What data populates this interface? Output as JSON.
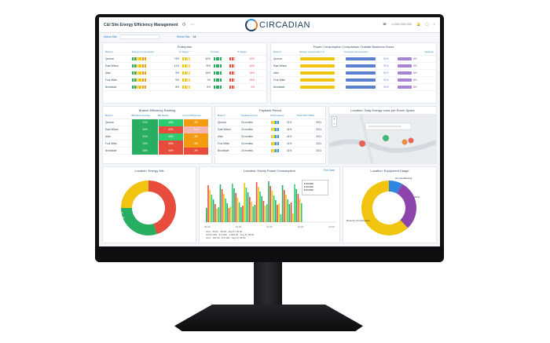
{
  "app": {
    "title": "C&I Site Energy Efficiency Management",
    "logo_text": "CIRCADIAN",
    "phone": "1-000-000-000",
    "colors": {
      "accent": "#2980b9",
      "good": "#27ae60",
      "warn": "#f1c40f",
      "bad": "#e74c3c",
      "purple": "#8e44ad"
    }
  },
  "filters": {
    "a_label": "Select Site",
    "b_label": "Select Site",
    "c_value": "All"
  },
  "panel1": {
    "title": "Enterprise",
    "headers": [
      "Branch",
      "Energy Consumption",
      "% Target ^",
      "% Peak",
      "% Target"
    ],
    "rows": [
      {
        "name": "Quezon",
        "v1": "73%",
        "v2": "62%",
        "v3": "40%"
      },
      {
        "name": "East Wilson",
        "v1": "41%",
        "v2": "79%",
        "v3": "40%"
      },
      {
        "name": "Alice",
        "v1": "9%",
        "v2": "45%",
        "v3": "45%"
      },
      {
        "name": "Four Miles",
        "v1": "9%",
        "v2": "1%",
        "v3": "25%"
      },
      {
        "name": "Brookdale",
        "v1": "8%",
        "v2": "5%",
        "v3": "5%"
      }
    ]
  },
  "panel2": {
    "title": "Power Consumption Comparison Outside Business Hours",
    "headers": [
      "Branch",
      "Energy Consumption %",
      "Forecast Consumption",
      "Variance"
    ],
    "rows": [
      {
        "name": "Quezon",
        "v1": "91%",
        "v2": "8%"
      },
      {
        "name": "East Wilson",
        "v1": "91%",
        "v2": "9%"
      },
      {
        "name": "Alice",
        "v1": "91%",
        "v2": "8%"
      },
      {
        "name": "Four Miles",
        "v1": "91%",
        "v2": "8%"
      },
      {
        "name": "Brookdale",
        "v1": "91%",
        "v2": "8%"
      }
    ]
  },
  "panel3": {
    "title": "Branch Efficiency Ranking",
    "headers": [
      "Branch",
      "BE Rank Average",
      "BE Ranks",
      "Current Business"
    ],
    "rows": [
      {
        "name": "Quezon",
        "v1": "21%",
        "v2": "46%",
        "v3": "3%"
      },
      {
        "name": "East Wilson",
        "v1": "40%",
        "v2": "40%",
        "v3": "11%"
      },
      {
        "name": "Alice",
        "v1": "31%",
        "v2": "45%",
        "v3": "3%"
      },
      {
        "name": "Four Miles",
        "v1": "10%",
        "v2": "46%",
        "v3": "4%"
      },
      {
        "name": "Brookdale",
        "v1": "28%",
        "v2": "46%",
        "v3": "3%"
      }
    ]
  },
  "panel4": {
    "title": "Payback Period",
    "headers": [
      "Branch",
      "Payback Period",
      "Performance",
      "Total COO Office"
    ],
    "rows": [
      {
        "name": "Quezon",
        "v1": "24 months",
        "v2": "21%",
        "v3": "2011"
      },
      {
        "name": "East Wilson",
        "v1": "24 months",
        "v2": "41%",
        "v3": "2011"
      },
      {
        "name": "Alice",
        "v1": "24 months",
        "v2": "41%",
        "v3": "2011"
      },
      {
        "name": "Four Miles",
        "v1": "24 months",
        "v2": "41%",
        "v3": "2011"
      },
      {
        "name": "Brookdale",
        "v1": "24 months",
        "v2": "41%",
        "v3": "2011"
      }
    ]
  },
  "panel5": {
    "title": "Location: Daily Energy costs per Room Space",
    "zoom_in": "+",
    "zoom_out": "−"
  },
  "panel6": {
    "title": "Location: Energy Mix",
    "slices": [
      {
        "label": "Grid",
        "value": 45
      },
      {
        "label": "Solar",
        "value": 30
      },
      {
        "label": "Other",
        "value": 25
      }
    ],
    "labels": [
      "$$ 37,000",
      "$$ 21,500"
    ]
  },
  "panel7": {
    "title": "Location: Hourly Power Consumption",
    "link": "Full Data",
    "tooltip": {
      "row1": "$ 33,000",
      "row2": "$ 33,000",
      "row3": "$ 33,000"
    },
    "x_ticks": [
      "00:00",
      "00:00",
      "01:00",
      "02:00",
      "03:00"
    ],
    "legend": [
      "Grid · 50.01 · 50.00 · Aug 8 | 00:00",
      "Grid 5,000 · $ 5,000 · 1,000.00 · Aug 8 | 06:00",
      "Grid · 100.00 · $ 5,000 · Aug 8 | 09:00"
    ]
  },
  "panel8": {
    "title": "Location: Equipment Usage",
    "labels": [
      "Air-Conditioning",
      "Other",
      "Reserve Consumption"
    ]
  }
}
